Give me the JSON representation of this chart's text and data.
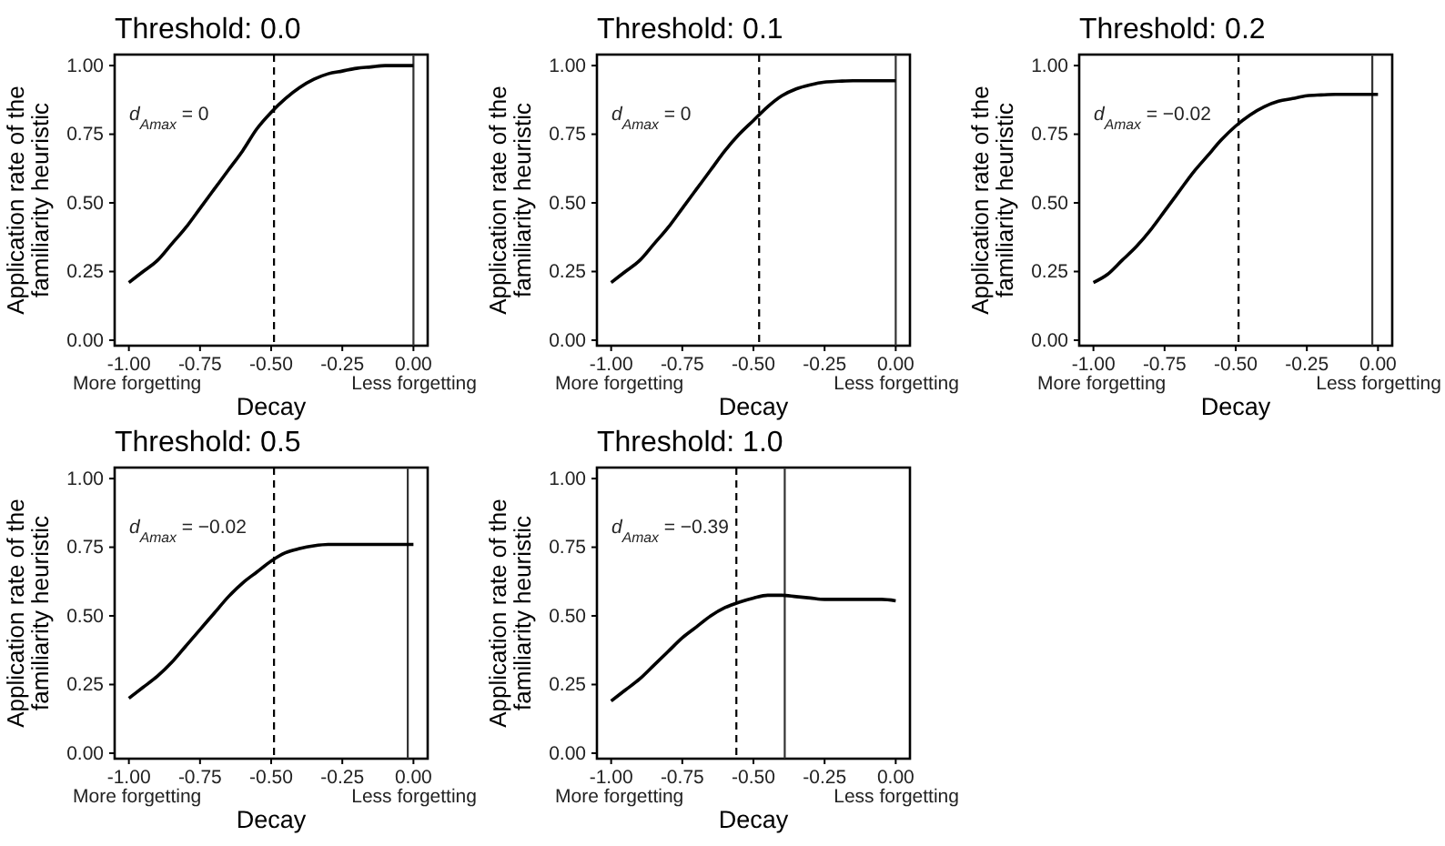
{
  "chart_data": [
    {
      "type": "line",
      "title": "Threshold: 0.0",
      "xlabel": "Decay",
      "ylabel": "Application rate of the familiarity heuristic",
      "annotations": [
        "d$_{Amax}$ = 0",
        "More forgetting",
        "Less forgetting"
      ],
      "xlim": [
        -1.05,
        0.05
      ],
      "ylim": [
        -0.02,
        1.04
      ],
      "xticks": [
        {
          "value": -1,
          "label": "-1.00"
        },
        {
          "value": -0.75,
          "label": "-0.75"
        },
        {
          "value": -0.5,
          "label": "-0.50"
        },
        {
          "value": -0.25,
          "label": "-0.25"
        },
        {
          "value": 0,
          "label": "0.00"
        }
      ],
      "yticks": [
        {
          "value": 0,
          "label": "0.00"
        },
        {
          "value": 0.25,
          "label": "0.25"
        },
        {
          "value": 0.5,
          "label": "0.50"
        },
        {
          "value": 0.75,
          "label": "0.75"
        },
        {
          "value": 1,
          "label": "1.00"
        }
      ],
      "ref_lines": [
        {
          "axis": "x",
          "value": -0.49,
          "line_style": "dashed",
          "color": "#000000"
        },
        {
          "axis": "x",
          "value": 0,
          "line_style": "solid",
          "color": "#333333"
        }
      ],
      "x": [
        -1,
        -0.95,
        -0.9,
        -0.85,
        -0.8,
        -0.75,
        -0.7,
        -0.65,
        -0.6,
        -0.55,
        -0.5,
        -0.45,
        -0.4,
        -0.35,
        -0.3,
        -0.25,
        -0.2,
        -0.15,
        -0.1,
        -0.05,
        0
      ],
      "series": [
        {
          "color": "#000000",
          "values": [
            0.21,
            0.25,
            0.29,
            0.35,
            0.41,
            0.48,
            0.55,
            0.62,
            0.69,
            0.77,
            0.83,
            0.88,
            0.92,
            0.95,
            0.97,
            0.98,
            0.99,
            0.995,
            1.0,
            1.0,
            1.0
          ]
        }
      ]
    },
    {
      "type": "line",
      "title": "Threshold: 0.1",
      "xlabel": "Decay",
      "ylabel": "Application rate of the familiarity heuristic",
      "annotations": [
        "d$_{Amax}$ = 0",
        "More forgetting",
        "Less forgetting"
      ],
      "xlim": [
        -1.05,
        0.05
      ],
      "ylim": [
        -0.02,
        1.04
      ],
      "xticks": [
        {
          "value": -1,
          "label": "-1.00"
        },
        {
          "value": -0.75,
          "label": "-0.75"
        },
        {
          "value": -0.5,
          "label": "-0.50"
        },
        {
          "value": -0.25,
          "label": "-0.25"
        },
        {
          "value": 0,
          "label": "0.00"
        }
      ],
      "yticks": [
        {
          "value": 0,
          "label": "0.00"
        },
        {
          "value": 0.25,
          "label": "0.25"
        },
        {
          "value": 0.5,
          "label": "0.50"
        },
        {
          "value": 0.75,
          "label": "0.75"
        },
        {
          "value": 1,
          "label": "1.00"
        }
      ],
      "ref_lines": [
        {
          "axis": "x",
          "value": -0.48,
          "line_style": "dashed",
          "color": "#000000"
        },
        {
          "axis": "x",
          "value": 0,
          "line_style": "solid",
          "color": "#333333"
        }
      ],
      "x": [
        -1,
        -0.95,
        -0.9,
        -0.85,
        -0.8,
        -0.75,
        -0.7,
        -0.65,
        -0.6,
        -0.55,
        -0.5,
        -0.45,
        -0.4,
        -0.35,
        -0.3,
        -0.25,
        -0.2,
        -0.15,
        -0.1,
        -0.05,
        0
      ],
      "series": [
        {
          "color": "#000000",
          "values": [
            0.21,
            0.25,
            0.29,
            0.35,
            0.41,
            0.48,
            0.55,
            0.62,
            0.69,
            0.75,
            0.8,
            0.85,
            0.89,
            0.915,
            0.93,
            0.94,
            0.943,
            0.945,
            0.945,
            0.945,
            0.945
          ]
        }
      ]
    },
    {
      "type": "line",
      "title": "Threshold: 0.2",
      "xlabel": "Decay",
      "ylabel": "Application rate of the familiarity heuristic",
      "annotations": [
        "d$_{Amax}$ = −0.02",
        "More forgetting",
        "Less forgetting"
      ],
      "xlim": [
        -1.05,
        0.05
      ],
      "ylim": [
        -0.02,
        1.04
      ],
      "xticks": [
        {
          "value": -1,
          "label": "-1.00"
        },
        {
          "value": -0.75,
          "label": "-0.75"
        },
        {
          "value": -0.5,
          "label": "-0.50"
        },
        {
          "value": -0.25,
          "label": "-0.25"
        },
        {
          "value": 0,
          "label": "0.00"
        }
      ],
      "yticks": [
        {
          "value": 0,
          "label": "0.00"
        },
        {
          "value": 0.25,
          "label": "0.25"
        },
        {
          "value": 0.5,
          "label": "0.50"
        },
        {
          "value": 0.75,
          "label": "0.75"
        },
        {
          "value": 1,
          "label": "1.00"
        }
      ],
      "ref_lines": [
        {
          "axis": "x",
          "value": -0.49,
          "line_style": "dashed",
          "color": "#000000"
        },
        {
          "axis": "x",
          "value": -0.02,
          "line_style": "solid",
          "color": "#333333"
        }
      ],
      "x": [
        -1,
        -0.95,
        -0.9,
        -0.85,
        -0.8,
        -0.75,
        -0.7,
        -0.65,
        -0.6,
        -0.55,
        -0.5,
        -0.45,
        -0.4,
        -0.35,
        -0.3,
        -0.25,
        -0.2,
        -0.15,
        -0.1,
        -0.05,
        0
      ],
      "series": [
        {
          "color": "#000000",
          "values": [
            0.21,
            0.24,
            0.29,
            0.34,
            0.4,
            0.47,
            0.54,
            0.61,
            0.67,
            0.73,
            0.78,
            0.82,
            0.85,
            0.87,
            0.88,
            0.89,
            0.893,
            0.895,
            0.895,
            0.895,
            0.895
          ]
        }
      ]
    },
    {
      "type": "line",
      "title": "Threshold: 0.5",
      "xlabel": "Decay",
      "ylabel": "Application rate of the familiarity heuristic",
      "annotations": [
        "d$_{Amax}$ = −0.02",
        "More forgetting",
        "Less forgetting"
      ],
      "xlim": [
        -1.05,
        0.05
      ],
      "ylim": [
        -0.02,
        1.04
      ],
      "xticks": [
        {
          "value": -1,
          "label": "-1.00"
        },
        {
          "value": -0.75,
          "label": "-0.75"
        },
        {
          "value": -0.5,
          "label": "-0.50"
        },
        {
          "value": -0.25,
          "label": "-0.25"
        },
        {
          "value": 0,
          "label": "0.00"
        }
      ],
      "yticks": [
        {
          "value": 0,
          "label": "0.00"
        },
        {
          "value": 0.25,
          "label": "0.25"
        },
        {
          "value": 0.5,
          "label": "0.50"
        },
        {
          "value": 0.75,
          "label": "0.75"
        },
        {
          "value": 1,
          "label": "1.00"
        }
      ],
      "ref_lines": [
        {
          "axis": "x",
          "value": -0.49,
          "line_style": "dashed",
          "color": "#000000"
        },
        {
          "axis": "x",
          "value": -0.02,
          "line_style": "solid",
          "color": "#333333"
        }
      ],
      "x": [
        -1,
        -0.95,
        -0.9,
        -0.85,
        -0.8,
        -0.75,
        -0.7,
        -0.65,
        -0.6,
        -0.55,
        -0.5,
        -0.45,
        -0.4,
        -0.35,
        -0.3,
        -0.25,
        -0.2,
        -0.15,
        -0.1,
        -0.05,
        0
      ],
      "series": [
        {
          "color": "#000000",
          "values": [
            0.2,
            0.24,
            0.28,
            0.33,
            0.39,
            0.45,
            0.51,
            0.57,
            0.62,
            0.66,
            0.7,
            0.73,
            0.745,
            0.755,
            0.76,
            0.76,
            0.76,
            0.76,
            0.76,
            0.76,
            0.76
          ]
        }
      ]
    },
    {
      "type": "line",
      "title": "Threshold: 1.0",
      "xlabel": "Decay",
      "ylabel": "Application rate of the familiarity heuristic",
      "annotations": [
        "d$_{Amax}$ = −0.39",
        "More forgetting",
        "Less forgetting"
      ],
      "xlim": [
        -1.05,
        0.05
      ],
      "ylim": [
        -0.02,
        1.04
      ],
      "xticks": [
        {
          "value": -1,
          "label": "-1.00"
        },
        {
          "value": -0.75,
          "label": "-0.75"
        },
        {
          "value": -0.5,
          "label": "-0.50"
        },
        {
          "value": -0.25,
          "label": "-0.25"
        },
        {
          "value": 0,
          "label": "0.00"
        }
      ],
      "yticks": [
        {
          "value": 0,
          "label": "0.00"
        },
        {
          "value": 0.25,
          "label": "0.25"
        },
        {
          "value": 0.5,
          "label": "0.50"
        },
        {
          "value": 0.75,
          "label": "0.75"
        },
        {
          "value": 1,
          "label": "1.00"
        }
      ],
      "ref_lines": [
        {
          "axis": "x",
          "value": -0.56,
          "line_style": "dashed",
          "color": "#000000"
        },
        {
          "axis": "x",
          "value": -0.39,
          "line_style": "solid",
          "color": "#333333"
        }
      ],
      "x": [
        -1,
        -0.95,
        -0.9,
        -0.85,
        -0.8,
        -0.75,
        -0.7,
        -0.65,
        -0.6,
        -0.55,
        -0.5,
        -0.45,
        -0.4,
        -0.35,
        -0.3,
        -0.25,
        -0.2,
        -0.15,
        -0.1,
        -0.05,
        0
      ],
      "series": [
        {
          "color": "#000000",
          "values": [
            0.19,
            0.23,
            0.27,
            0.32,
            0.37,
            0.42,
            0.46,
            0.5,
            0.53,
            0.55,
            0.565,
            0.575,
            0.575,
            0.57,
            0.565,
            0.56,
            0.56,
            0.56,
            0.56,
            0.56,
            0.555
          ]
        }
      ]
    }
  ]
}
